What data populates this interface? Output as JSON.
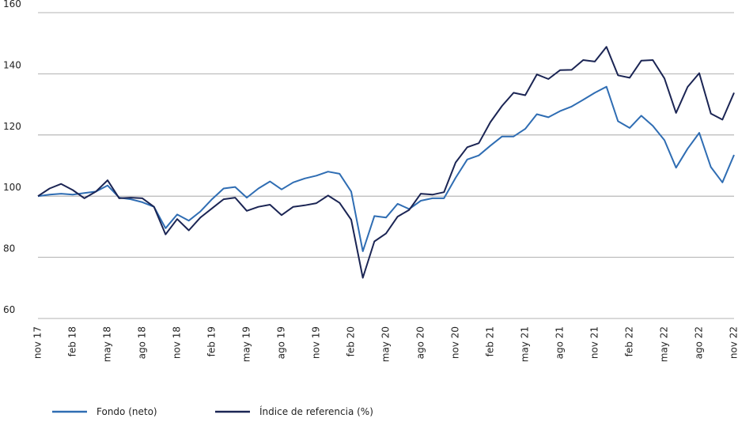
{
  "chart_data": {
    "type": "line",
    "categories": [
      "nov 17",
      null,
      null,
      "feb 18",
      null,
      null,
      "may 18",
      null,
      null,
      "ago 18",
      null,
      null,
      "nov 18",
      null,
      null,
      "feb 19",
      null,
      null,
      "may 19",
      null,
      null,
      "ago 19",
      null,
      null,
      "nov 19",
      null,
      null,
      "feb 20",
      null,
      null,
      "may 20",
      null,
      null,
      "ago 20",
      null,
      null,
      "nov 20",
      null,
      null,
      "feb 21",
      null,
      null,
      "may 21",
      null,
      null,
      "ago 21",
      null,
      null,
      "nov 21",
      null,
      null,
      "feb 22",
      null,
      null,
      "may 22",
      null,
      null,
      "ago 22",
      null,
      null,
      "nov 22"
    ],
    "series": [
      {
        "name": "Fondo (neto)",
        "color": "#2f6db3",
        "values": [
          100,
          100.5,
          100.8,
          100.5,
          101,
          101.5,
          103.5,
          99.5,
          99,
          98,
          96.5,
          89.5,
          94,
          92,
          95,
          99,
          102.5,
          103,
          99.5,
          102.5,
          104.8,
          102.2,
          104.5,
          105.8,
          106.7,
          108,
          107.3,
          101.5,
          82,
          93.5,
          93,
          97.5,
          95.8,
          98.5,
          99.3,
          99.3,
          106,
          112,
          113.3,
          116.5,
          119.5,
          119.5,
          122,
          126.8,
          125.8,
          127.8,
          129.3,
          131.5,
          133.8,
          135.8,
          124.5,
          122.3,
          126.3,
          123,
          118.3,
          109.3,
          115.5,
          120.7,
          109.5,
          104.5,
          113.5
        ]
      },
      {
        "name": "Índice de referencia (%)",
        "color": "#1b2554",
        "values": [
          100,
          102.5,
          104,
          102,
          99.3,
          101.5,
          105.2,
          99.3,
          99.5,
          99.3,
          96.5,
          87.5,
          92.5,
          88.8,
          93,
          96,
          99,
          99.5,
          95.2,
          96.5,
          97.2,
          93.8,
          96.5,
          97,
          97.7,
          100.2,
          97.8,
          92.3,
          73.3,
          85.2,
          87.8,
          93.3,
          95.5,
          100.8,
          100.5,
          101.3,
          111,
          116,
          117.3,
          124.2,
          129.5,
          133.8,
          133,
          139.8,
          138.3,
          141.2,
          141.3,
          144.5,
          144,
          148.8,
          139.5,
          138.7,
          144.3,
          144.5,
          138.5,
          127.2,
          135.7,
          140.2,
          127,
          125,
          133.8
        ]
      }
    ],
    "ylim": [
      60,
      160
    ],
    "yticks": [
      60,
      80,
      100,
      120,
      140,
      160
    ],
    "grid": true,
    "legend": "bottom"
  }
}
